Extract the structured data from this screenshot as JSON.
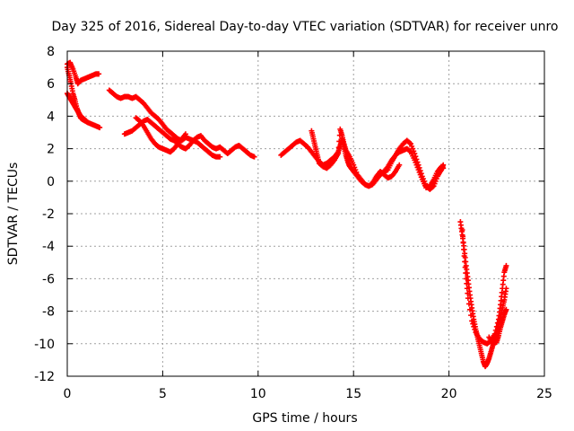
{
  "chart_data": {
    "type": "scatter",
    "title": "Day 325 of 2016, Sidereal Day-to-day VTEC variation (SDTVAR) for receiver unro",
    "xlabel": "GPS time / hours",
    "ylabel": "SDTVAR / TECUs",
    "xlim": [
      0,
      25
    ],
    "ylim": [
      -12,
      8
    ],
    "xticks": [
      0,
      5,
      10,
      15,
      20,
      25
    ],
    "yticks": [
      8,
      6,
      4,
      2,
      0,
      -2,
      -4,
      -6,
      -8,
      -10,
      -12
    ],
    "xtick_labels": [
      "0",
      "5",
      "10",
      "15",
      "20",
      "25"
    ],
    "ytick_labels": [
      "8",
      "6",
      "4",
      "2",
      "0",
      "-2",
      "-4",
      "-6",
      "-8",
      "-10",
      "-12"
    ],
    "grid": true,
    "marker": "plus",
    "series": [
      {
        "name": "SDTVAR",
        "color": "#ff0000",
        "segments": [
          [
            [
              0.0,
              7.2
            ],
            [
              0.15,
              7.3
            ],
            [
              0.3,
              6.9
            ],
            [
              0.45,
              6.4
            ],
            [
              0.55,
              6.0
            ],
            [
              0.7,
              6.2
            ],
            [
              0.9,
              6.3
            ],
            [
              1.1,
              6.4
            ],
            [
              1.3,
              6.5
            ],
            [
              1.5,
              6.6
            ],
            [
              1.65,
              6.6
            ]
          ],
          [
            [
              0.0,
              7.0
            ],
            [
              0.1,
              6.5
            ],
            [
              0.2,
              6.0
            ],
            [
              0.3,
              5.4
            ],
            [
              0.4,
              5.0
            ],
            [
              0.5,
              4.5
            ],
            [
              0.6,
              4.2
            ],
            [
              0.7,
              3.9
            ],
            [
              0.8,
              3.8
            ],
            [
              0.95,
              3.7
            ],
            [
              1.1,
              3.6
            ],
            [
              1.3,
              3.5
            ],
            [
              1.5,
              3.4
            ],
            [
              1.7,
              3.3
            ]
          ],
          [
            [
              0.0,
              5.4
            ],
            [
              0.1,
              5.2
            ],
            [
              0.2,
              5.0
            ],
            [
              0.3,
              4.8
            ],
            [
              0.4,
              4.6
            ],
            [
              0.5,
              4.4
            ],
            [
              0.6,
              4.2
            ],
            [
              0.7,
              4.0
            ],
            [
              0.8,
              3.9
            ],
            [
              0.9,
              3.8
            ],
            [
              1.0,
              3.7
            ]
          ],
          [
            [
              2.2,
              5.6
            ],
            [
              2.4,
              5.4
            ],
            [
              2.6,
              5.2
            ],
            [
              2.8,
              5.1
            ],
            [
              3.0,
              5.2
            ],
            [
              3.2,
              5.2
            ],
            [
              3.4,
              5.1
            ],
            [
              3.6,
              5.2
            ],
            [
              3.8,
              5.0
            ],
            [
              4.0,
              4.8
            ],
            [
              4.2,
              4.5
            ],
            [
              4.4,
              4.2
            ],
            [
              4.6,
              4.0
            ],
            [
              4.8,
              3.8
            ],
            [
              5.0,
              3.5
            ],
            [
              5.2,
              3.2
            ],
            [
              5.4,
              3.0
            ],
            [
              5.6,
              2.8
            ],
            [
              5.8,
              2.6
            ],
            [
              6.0,
              2.5
            ],
            [
              6.2,
              2.7
            ],
            [
              6.4,
              2.6
            ],
            [
              6.6,
              2.5
            ],
            [
              6.8,
              2.7
            ],
            [
              7.0,
              2.8
            ],
            [
              7.2,
              2.5
            ],
            [
              7.4,
              2.3
            ],
            [
              7.6,
              2.1
            ],
            [
              7.8,
              2.0
            ],
            [
              8.0,
              2.1
            ],
            [
              8.2,
              1.9
            ],
            [
              8.4,
              1.7
            ],
            [
              8.6,
              1.9
            ],
            [
              8.8,
              2.1
            ],
            [
              9.0,
              2.2
            ],
            [
              9.2,
              2.0
            ],
            [
              9.4,
              1.8
            ],
            [
              9.6,
              1.6
            ],
            [
              9.8,
              1.5
            ]
          ],
          [
            [
              3.0,
              2.9
            ],
            [
              3.2,
              3.0
            ],
            [
              3.4,
              3.1
            ],
            [
              3.6,
              3.3
            ],
            [
              3.8,
              3.5
            ],
            [
              4.0,
              3.7
            ],
            [
              4.2,
              3.8
            ],
            [
              4.4,
              3.6
            ],
            [
              4.6,
              3.4
            ],
            [
              4.8,
              3.2
            ],
            [
              5.0,
              3.0
            ],
            [
              5.2,
              2.8
            ],
            [
              5.4,
              2.6
            ],
            [
              5.6,
              2.5
            ],
            [
              5.8,
              2.3
            ],
            [
              6.0,
              2.1
            ],
            [
              6.2,
              2.0
            ],
            [
              6.4,
              2.2
            ],
            [
              6.6,
              2.5
            ],
            [
              6.8,
              2.4
            ],
            [
              7.0,
              2.2
            ],
            [
              7.2,
              2.0
            ],
            [
              7.4,
              1.8
            ],
            [
              7.6,
              1.6
            ],
            [
              7.8,
              1.5
            ],
            [
              8.0,
              1.5
            ]
          ],
          [
            [
              3.6,
              3.9
            ],
            [
              3.8,
              3.7
            ],
            [
              4.0,
              3.4
            ],
            [
              4.2,
              3.0
            ],
            [
              4.4,
              2.6
            ],
            [
              4.6,
              2.3
            ],
            [
              4.8,
              2.1
            ],
            [
              5.0,
              2.0
            ],
            [
              5.2,
              1.9
            ],
            [
              5.4,
              1.8
            ],
            [
              5.6,
              2.0
            ],
            [
              5.8,
              2.3
            ],
            [
              6.0,
              2.6
            ],
            [
              6.2,
              2.9
            ]
          ],
          [
            [
              11.2,
              1.6
            ],
            [
              11.4,
              1.8
            ],
            [
              11.6,
              2.0
            ],
            [
              11.8,
              2.2
            ],
            [
              12.0,
              2.4
            ],
            [
              12.2,
              2.5
            ],
            [
              12.4,
              2.3
            ],
            [
              12.6,
              2.1
            ],
            [
              12.8,
              1.8
            ],
            [
              13.0,
              1.5
            ],
            [
              13.2,
              1.2
            ],
            [
              13.4,
              1.0
            ],
            [
              13.6,
              1.1
            ],
            [
              13.8,
              1.3
            ],
            [
              14.0,
              1.5
            ],
            [
              14.2,
              1.8
            ],
            [
              14.3,
              2.2
            ],
            [
              14.4,
              2.6
            ],
            [
              14.5,
              2.1
            ],
            [
              14.6,
              1.6
            ],
            [
              14.7,
              1.2
            ],
            [
              14.8,
              0.9
            ],
            [
              15.0,
              0.6
            ],
            [
              15.2,
              0.3
            ],
            [
              15.4,
              0.0
            ],
            [
              15.6,
              -0.2
            ],
            [
              15.8,
              -0.3
            ],
            [
              16.0,
              -0.2
            ],
            [
              16.2,
              0.1
            ],
            [
              16.4,
              0.4
            ],
            [
              16.6,
              0.6
            ],
            [
              16.8,
              0.7
            ],
            [
              17.0,
              1.2
            ],
            [
              17.2,
              1.6
            ],
            [
              17.4,
              1.8
            ],
            [
              17.6,
              1.9
            ],
            [
              17.8,
              2.0
            ],
            [
              18.0,
              1.8
            ],
            [
              18.2,
              1.3
            ],
            [
              18.4,
              0.7
            ],
            [
              18.6,
              0.1
            ],
            [
              18.8,
              -0.4
            ],
            [
              19.0,
              -0.3
            ],
            [
              19.2,
              0.1
            ],
            [
              19.4,
              0.6
            ],
            [
              19.6,
              0.9
            ],
            [
              19.7,
              0.8
            ]
          ],
          [
            [
              12.8,
              3.1
            ],
            [
              12.9,
              2.6
            ],
            [
              13.0,
              2.1
            ],
            [
              13.1,
              1.6
            ],
            [
              13.2,
              1.1
            ],
            [
              13.4,
              0.9
            ],
            [
              13.6,
              0.8
            ],
            [
              13.8,
              1.0
            ],
            [
              14.0,
              1.3
            ],
            [
              14.2,
              1.7
            ],
            [
              14.3,
              3.2
            ],
            [
              14.4,
              2.8
            ],
            [
              14.5,
              2.3
            ],
            [
              14.6,
              1.9
            ],
            [
              14.8,
              1.5
            ],
            [
              15.0,
              1.0
            ],
            [
              15.2,
              0.4
            ],
            [
              15.4,
              0.1
            ],
            [
              15.6,
              -0.2
            ],
            [
              15.8,
              -0.3
            ],
            [
              16.0,
              -0.1
            ],
            [
              16.2,
              0.3
            ],
            [
              16.4,
              0.6
            ],
            [
              16.6,
              0.4
            ],
            [
              16.8,
              0.2
            ],
            [
              17.0,
              0.3
            ],
            [
              17.2,
              0.6
            ],
            [
              17.4,
              1.0
            ]
          ],
          [
            [
              16.6,
              0.6
            ],
            [
              16.8,
              0.9
            ],
            [
              17.0,
              1.3
            ],
            [
              17.2,
              1.6
            ],
            [
              17.4,
              2.0
            ],
            [
              17.6,
              2.3
            ],
            [
              17.8,
              2.5
            ],
            [
              18.0,
              2.3
            ],
            [
              18.2,
              1.7
            ],
            [
              18.4,
              1.0
            ],
            [
              18.6,
              0.3
            ],
            [
              18.8,
              -0.3
            ],
            [
              19.0,
              -0.5
            ],
            [
              19.2,
              -0.3
            ],
            [
              19.4,
              0.3
            ],
            [
              19.6,
              0.7
            ],
            [
              19.7,
              1.0
            ]
          ],
          [
            [
              20.6,
              -2.5
            ],
            [
              20.7,
              -3.3
            ],
            [
              20.8,
              -4.2
            ],
            [
              20.9,
              -5.2
            ],
            [
              21.0,
              -6.1
            ],
            [
              21.1,
              -7.0
            ],
            [
              21.2,
              -7.8
            ],
            [
              21.3,
              -8.5
            ],
            [
              21.4,
              -9.1
            ],
            [
              21.5,
              -9.6
            ],
            [
              21.6,
              -10.1
            ],
            [
              21.7,
              -10.6
            ],
            [
              21.8,
              -11.1
            ],
            [
              21.9,
              -11.4
            ],
            [
              22.0,
              -11.2
            ],
            [
              22.1,
              -10.9
            ],
            [
              22.2,
              -10.5
            ],
            [
              22.3,
              -10.1
            ],
            [
              22.4,
              -9.7
            ],
            [
              22.5,
              -9.3
            ],
            [
              22.6,
              -8.8
            ],
            [
              22.7,
              -8.3
            ],
            [
              22.8,
              -7.8
            ],
            [
              22.9,
              -7.3
            ],
            [
              23.0,
              -6.6
            ]
          ],
          [
            [
              20.7,
              -3.0
            ],
            [
              20.8,
              -4.6
            ],
            [
              20.9,
              -6.0
            ],
            [
              21.0,
              -7.2
            ],
            [
              21.2,
              -8.6
            ],
            [
              21.4,
              -9.3
            ],
            [
              21.6,
              -9.7
            ],
            [
              21.8,
              -9.9
            ],
            [
              22.0,
              -10.0
            ],
            [
              22.2,
              -9.8
            ],
            [
              22.4,
              -9.4
            ],
            [
              22.6,
              -8.5
            ],
            [
              22.7,
              -7.6
            ],
            [
              22.8,
              -6.6
            ],
            [
              22.9,
              -5.6
            ],
            [
              23.0,
              -5.2
            ]
          ],
          [
            [
              22.1,
              -9.6
            ],
            [
              22.3,
              -10.0
            ],
            [
              22.5,
              -9.9
            ],
            [
              22.6,
              -9.5
            ],
            [
              22.7,
              -9.0
            ],
            [
              22.8,
              -8.6
            ],
            [
              22.9,
              -8.2
            ],
            [
              23.0,
              -7.9
            ]
          ]
        ]
      }
    ]
  }
}
